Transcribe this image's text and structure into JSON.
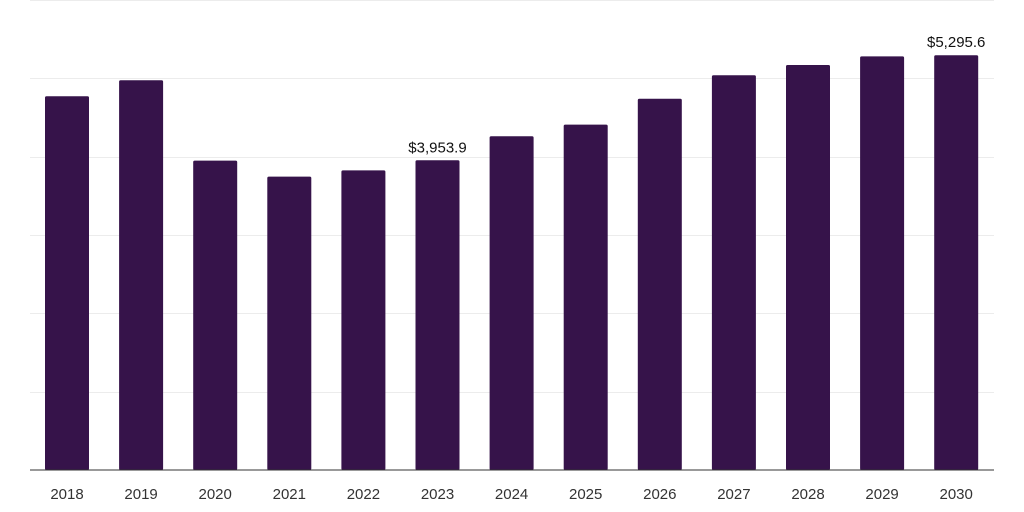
{
  "chart_data": {
    "type": "bar",
    "title": "",
    "xlabel": "",
    "ylabel": "",
    "categories": [
      "2018",
      "2019",
      "2020",
      "2021",
      "2022",
      "2023",
      "2024",
      "2025",
      "2026",
      "2027",
      "2028",
      "2029",
      "2030"
    ],
    "values": [
      4770,
      4975,
      3950,
      3745,
      3825,
      3953.9,
      4260,
      4410,
      4740,
      5040,
      5170,
      5280,
      5295.6
    ],
    "data_labels": [
      {
        "category": "2023",
        "text": "$3,953.9"
      },
      {
        "category": "2030",
        "text": "$5,295.6"
      }
    ],
    "ylim": [
      0,
      6000
    ],
    "gridlines": [
      0,
      1000,
      2000,
      3000,
      4000,
      5000,
      6000
    ],
    "grid": true,
    "y_tick_labels_visible": false,
    "bar_color": "#36134a"
  }
}
